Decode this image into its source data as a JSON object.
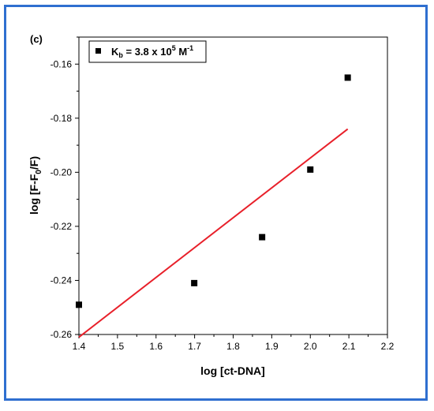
{
  "colors": {
    "border": "#2f6fd0",
    "fit_line": "#e8202a",
    "points": "#000000"
  },
  "chart_data": {
    "type": "scatter",
    "panel_label": "(c)",
    "xlabel": "log [ct-DNA]",
    "ylabel": {
      "pre": "log [F-F",
      "sub": "0",
      "post": "/F)"
    },
    "xlim": [
      1.4,
      2.2
    ],
    "ylim": [
      -0.26,
      -0.15
    ],
    "x_ticks": [
      1.4,
      1.5,
      1.6,
      1.7,
      1.8,
      1.9,
      2.0,
      2.1,
      2.2
    ],
    "x_tick_labels": [
      "1.4",
      "1.5",
      "1.6",
      "1.7",
      "1.8",
      "1.9",
      "2.0",
      "2.1",
      "2.2"
    ],
    "y_ticks": [
      -0.26,
      -0.24,
      -0.22,
      -0.2,
      -0.18,
      -0.16
    ],
    "y_tick_labels": [
      "-0.26",
      "-0.24",
      "-0.22",
      "-0.20",
      "-0.18",
      "-0.16"
    ],
    "grid": false,
    "legend_position": "top-left",
    "legend": {
      "K": "K",
      "K_sub": "b",
      "value": " = 3.8 x 10",
      "exp": "5",
      "unit": " M",
      "unit_exp": "-1"
    },
    "series": [
      {
        "type": "scatter",
        "marker": "square",
        "x": [
          1.4,
          1.699,
          1.875,
          2.0,
          2.097
        ],
        "y": [
          -0.249,
          -0.241,
          -0.224,
          -0.199,
          -0.165
        ]
      },
      {
        "type": "line",
        "role": "linear fit",
        "x": [
          1.4,
          2.097
        ],
        "y": [
          -0.261,
          -0.184
        ]
      }
    ]
  }
}
